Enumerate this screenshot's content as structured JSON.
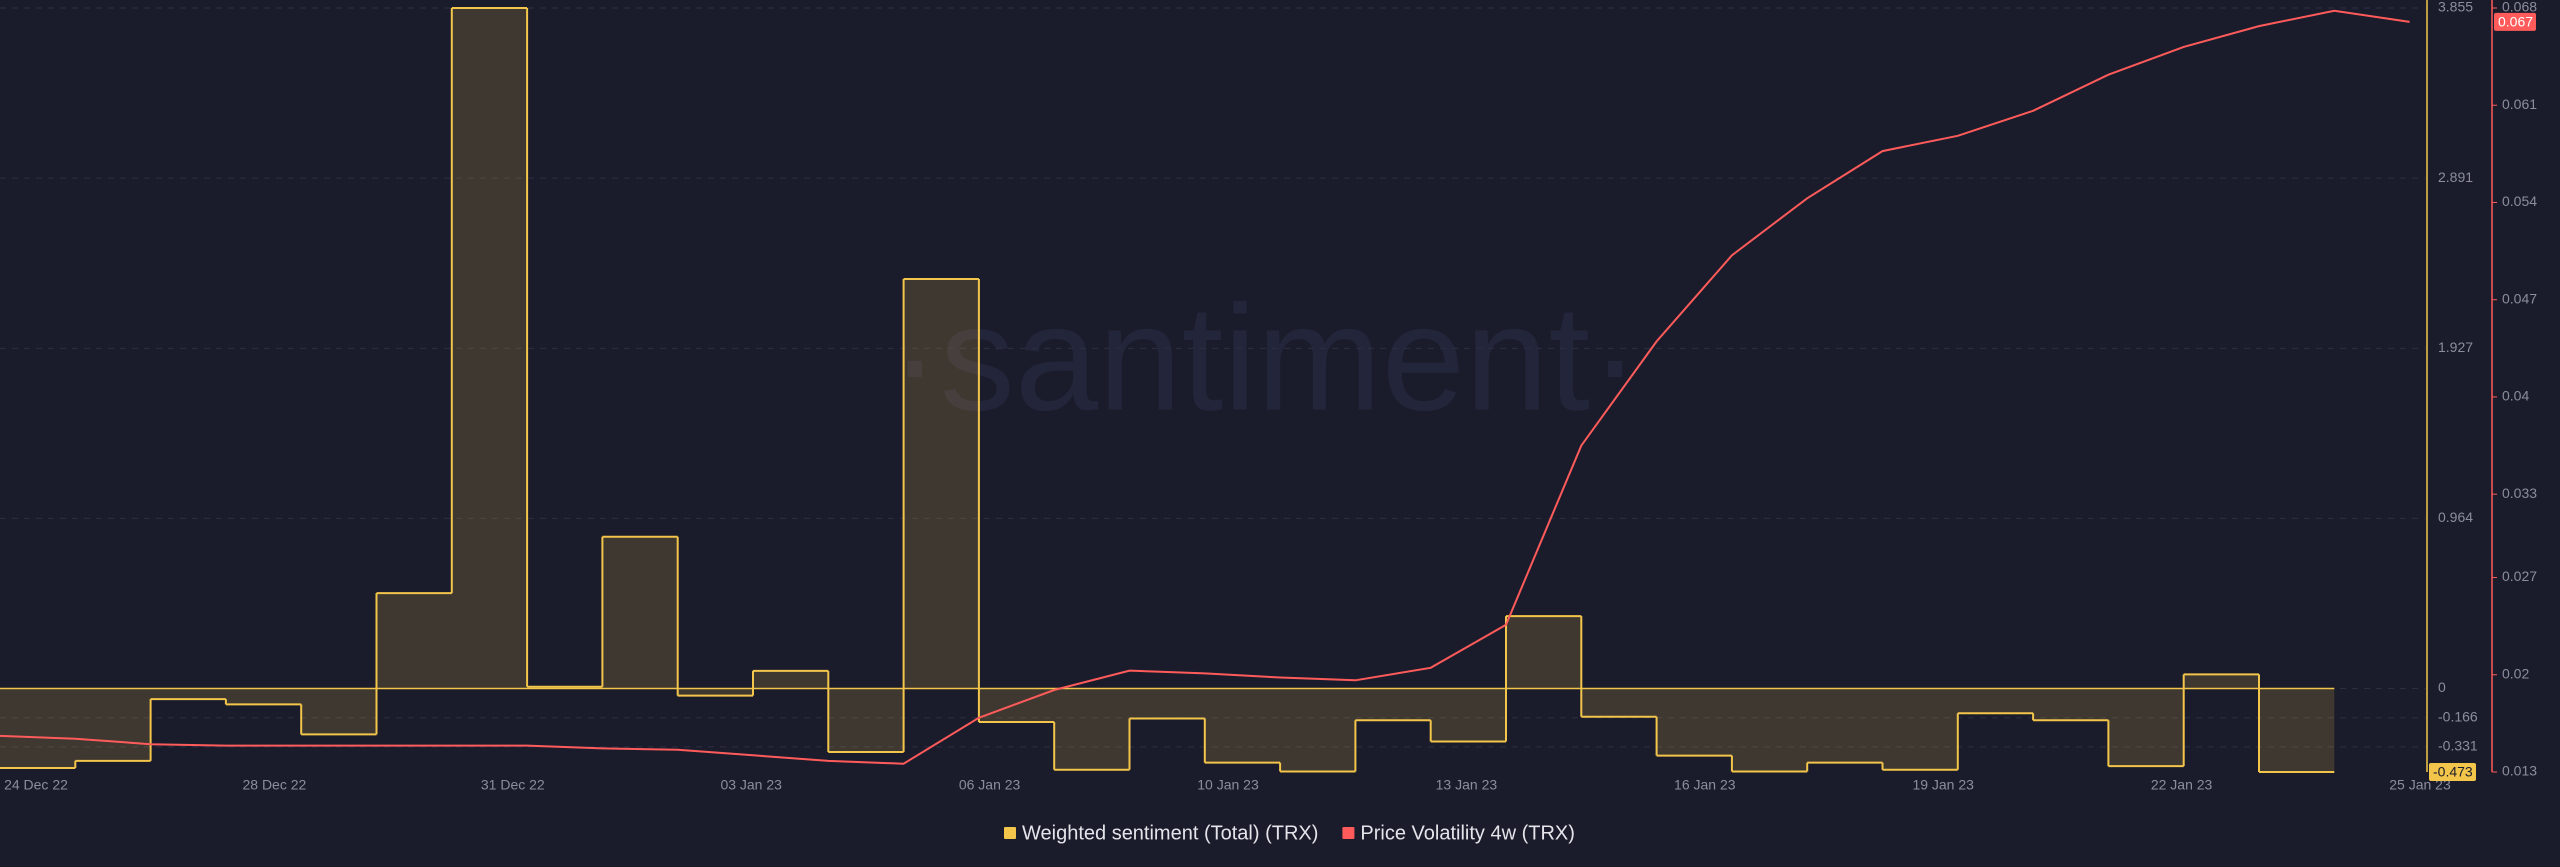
{
  "chart_data": {
    "type": "step-line",
    "watermark": "·santiment·",
    "xticks": [
      "24 Dec 22",
      "28 Dec 22",
      "31 Dec 22",
      "03 Jan 23",
      "06 Jan 23",
      "10 Jan 23",
      "13 Jan 23",
      "16 Jan 23",
      "19 Jan 23",
      "22 Jan 23",
      "25 Jan 23"
    ],
    "ylim": [
      -0.473,
      3.855
    ],
    "yticks": [
      3.855,
      2.891,
      1.927,
      0.964,
      0,
      -0.166,
      -0.331
    ],
    "y2lim": [
      0.013,
      0.068
    ],
    "y2ticks": [
      0.068,
      0.061,
      0.054,
      0.047,
      0.04,
      0.033,
      0.027,
      0.02,
      0.013
    ],
    "grid": true,
    "legend": "bottom",
    "series": [
      {
        "name": "Weighted sentiment (Total) (TRX)",
        "color": "#f3c64b",
        "kind": "step",
        "values": [
          -0.45,
          -0.41,
          -0.06,
          -0.09,
          -0.26,
          0.54,
          3.855,
          0.01,
          0.86,
          -0.04,
          0.1,
          -0.36,
          2.32,
          -0.19,
          -0.46,
          -0.17,
          -0.42,
          -0.47,
          -0.18,
          -0.3,
          0.41,
          -0.16,
          -0.38,
          -0.47,
          -0.42,
          -0.46,
          -0.14,
          -0.18,
          -0.44,
          0.08,
          -0.473
        ]
      },
      {
        "name": "Price Volatility 4w (TRX)",
        "color": "#ff5b5b",
        "kind": "line",
        "axis": "y2",
        "values": [
          0.0156,
          0.0154,
          0.015,
          0.0149,
          0.0149,
          0.0149,
          0.0149,
          0.0149,
          0.0147,
          0.0146,
          0.0142,
          0.0138,
          0.0136,
          0.0169,
          0.0189,
          0.0203,
          0.0201,
          0.0198,
          0.0196,
          0.0205,
          0.0236,
          0.0365,
          0.044,
          0.0502,
          0.0543,
          0.0577,
          0.0588,
          0.0606,
          0.0632,
          0.0652,
          0.0667,
          0.0678,
          0.067
        ]
      }
    ]
  }
}
